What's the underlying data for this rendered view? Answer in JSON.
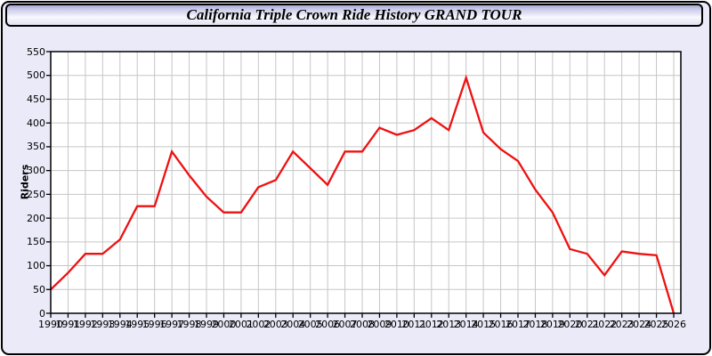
{
  "window": {
    "title": "California Triple Crown Ride History GRAND TOUR"
  },
  "chart_data": {
    "type": "line",
    "title": "California Triple Crown Ride History GRAND TOUR",
    "xlabel": "",
    "ylabel": "Riders",
    "x": [
      1990,
      1991,
      1992,
      1993,
      1994,
      1995,
      1996,
      1997,
      1998,
      1999,
      2000,
      2001,
      2002,
      2003,
      2004,
      2005,
      2006,
      2007,
      2008,
      2009,
      2010,
      2011,
      2012,
      2013,
      2014,
      2015,
      2016,
      2017,
      2018,
      2019,
      2020,
      2021,
      2022,
      2023,
      2024,
      2025,
      2026
    ],
    "series": [
      {
        "name": "Riders",
        "values": [
          50,
          85,
          125,
          125,
          155,
          225,
          225,
          340,
          290,
          245,
          212,
          212,
          265,
          280,
          340,
          305,
          270,
          340,
          340,
          390,
          375,
          385,
          410,
          385,
          495,
          380,
          345,
          320,
          260,
          212,
          135,
          125,
          80,
          130,
          125,
          122,
          0
        ]
      }
    ],
    "ylim": [
      0,
      550
    ],
    "ytick_step": 50,
    "grid": true,
    "legend_position": "none"
  },
  "colors": {
    "line": "#ee1111",
    "grid": "#c6c6c6",
    "axis": "#000000",
    "plot_bg": "#ffffff",
    "page_bg": "#eaeaf8",
    "titlebar_border": "#000000"
  }
}
